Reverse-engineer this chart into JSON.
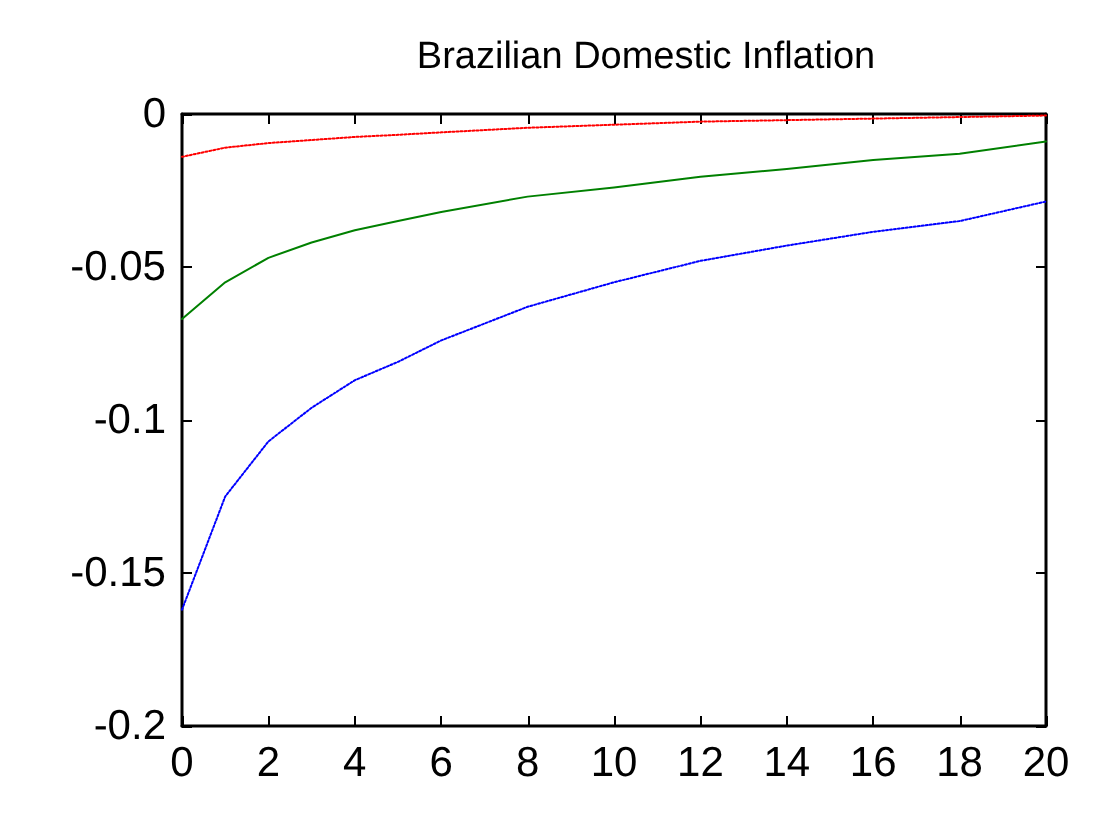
{
  "chart_data": {
    "type": "line",
    "title": "Brazilian Domestic Inflation",
    "x": [
      0,
      1,
      2,
      3,
      4,
      5,
      6,
      8,
      10,
      12,
      14,
      16,
      18,
      20
    ],
    "series": [
      {
        "color": "#ff0000",
        "line_style": "dotted",
        "values": [
          -0.014,
          -0.011,
          -0.0095,
          -0.0085,
          -0.0075,
          -0.0068,
          -0.006,
          -0.0045,
          -0.0035,
          -0.0025,
          -0.002,
          -0.0015,
          -0.001,
          -0.0005
        ]
      },
      {
        "color": "#008000",
        "line_style": "solid",
        "values": [
          -0.067,
          -0.055,
          -0.047,
          -0.042,
          -0.038,
          -0.035,
          -0.032,
          -0.027,
          -0.024,
          -0.0205,
          -0.018,
          -0.015,
          -0.013,
          -0.009
        ]
      },
      {
        "color": "#0000ff",
        "line_style": "dotted",
        "values": [
          -0.162,
          -0.125,
          -0.107,
          -0.096,
          -0.087,
          -0.081,
          -0.074,
          -0.063,
          -0.055,
          -0.048,
          -0.043,
          -0.0385,
          -0.035,
          -0.0286
        ]
      }
    ],
    "xlim": [
      0,
      20
    ],
    "xticks": [
      0,
      2,
      4,
      6,
      8,
      10,
      12,
      14,
      16,
      18,
      20
    ],
    "ylim": [
      -0.2,
      0
    ],
    "yticks": [
      -0.2,
      -0.15,
      -0.1,
      -0.05,
      0
    ],
    "grid": false,
    "marker": "none"
  }
}
